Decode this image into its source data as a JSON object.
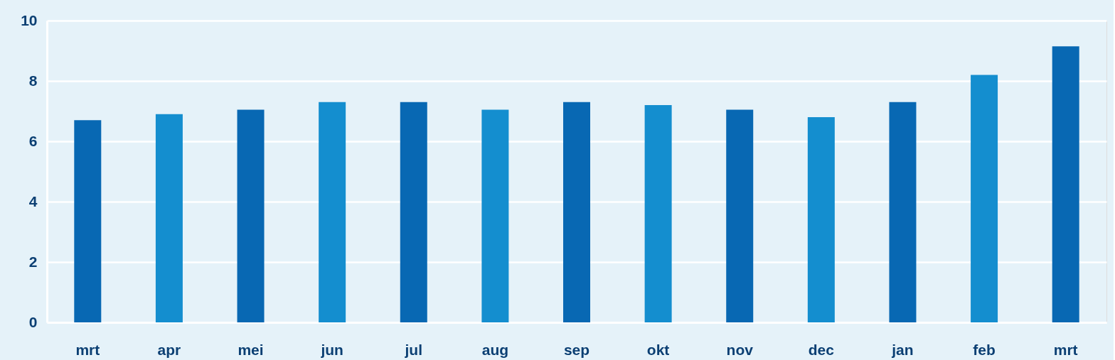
{
  "chart_data": {
    "type": "bar",
    "categories": [
      "mrt",
      "apr",
      "mei",
      "jun",
      "jul",
      "aug",
      "sep",
      "okt",
      "nov",
      "dec",
      "jan",
      "feb",
      "mrt"
    ],
    "values": [
      6.7,
      6.9,
      7.05,
      7.3,
      7.3,
      7.05,
      7.3,
      7.2,
      7.05,
      6.8,
      7.3,
      8.2,
      9.15
    ],
    "colors": [
      "#0868b3",
      "#148ecf",
      "#0868b3",
      "#148ecf",
      "#0868b3",
      "#148ecf",
      "#0868b3",
      "#148ecf",
      "#0868b3",
      "#148ecf",
      "#0868b3",
      "#148ecf",
      "#0868b3"
    ],
    "ylim": [
      0,
      10
    ],
    "yticks": [
      0,
      2,
      4,
      6,
      8,
      10
    ],
    "grid": "y"
  }
}
